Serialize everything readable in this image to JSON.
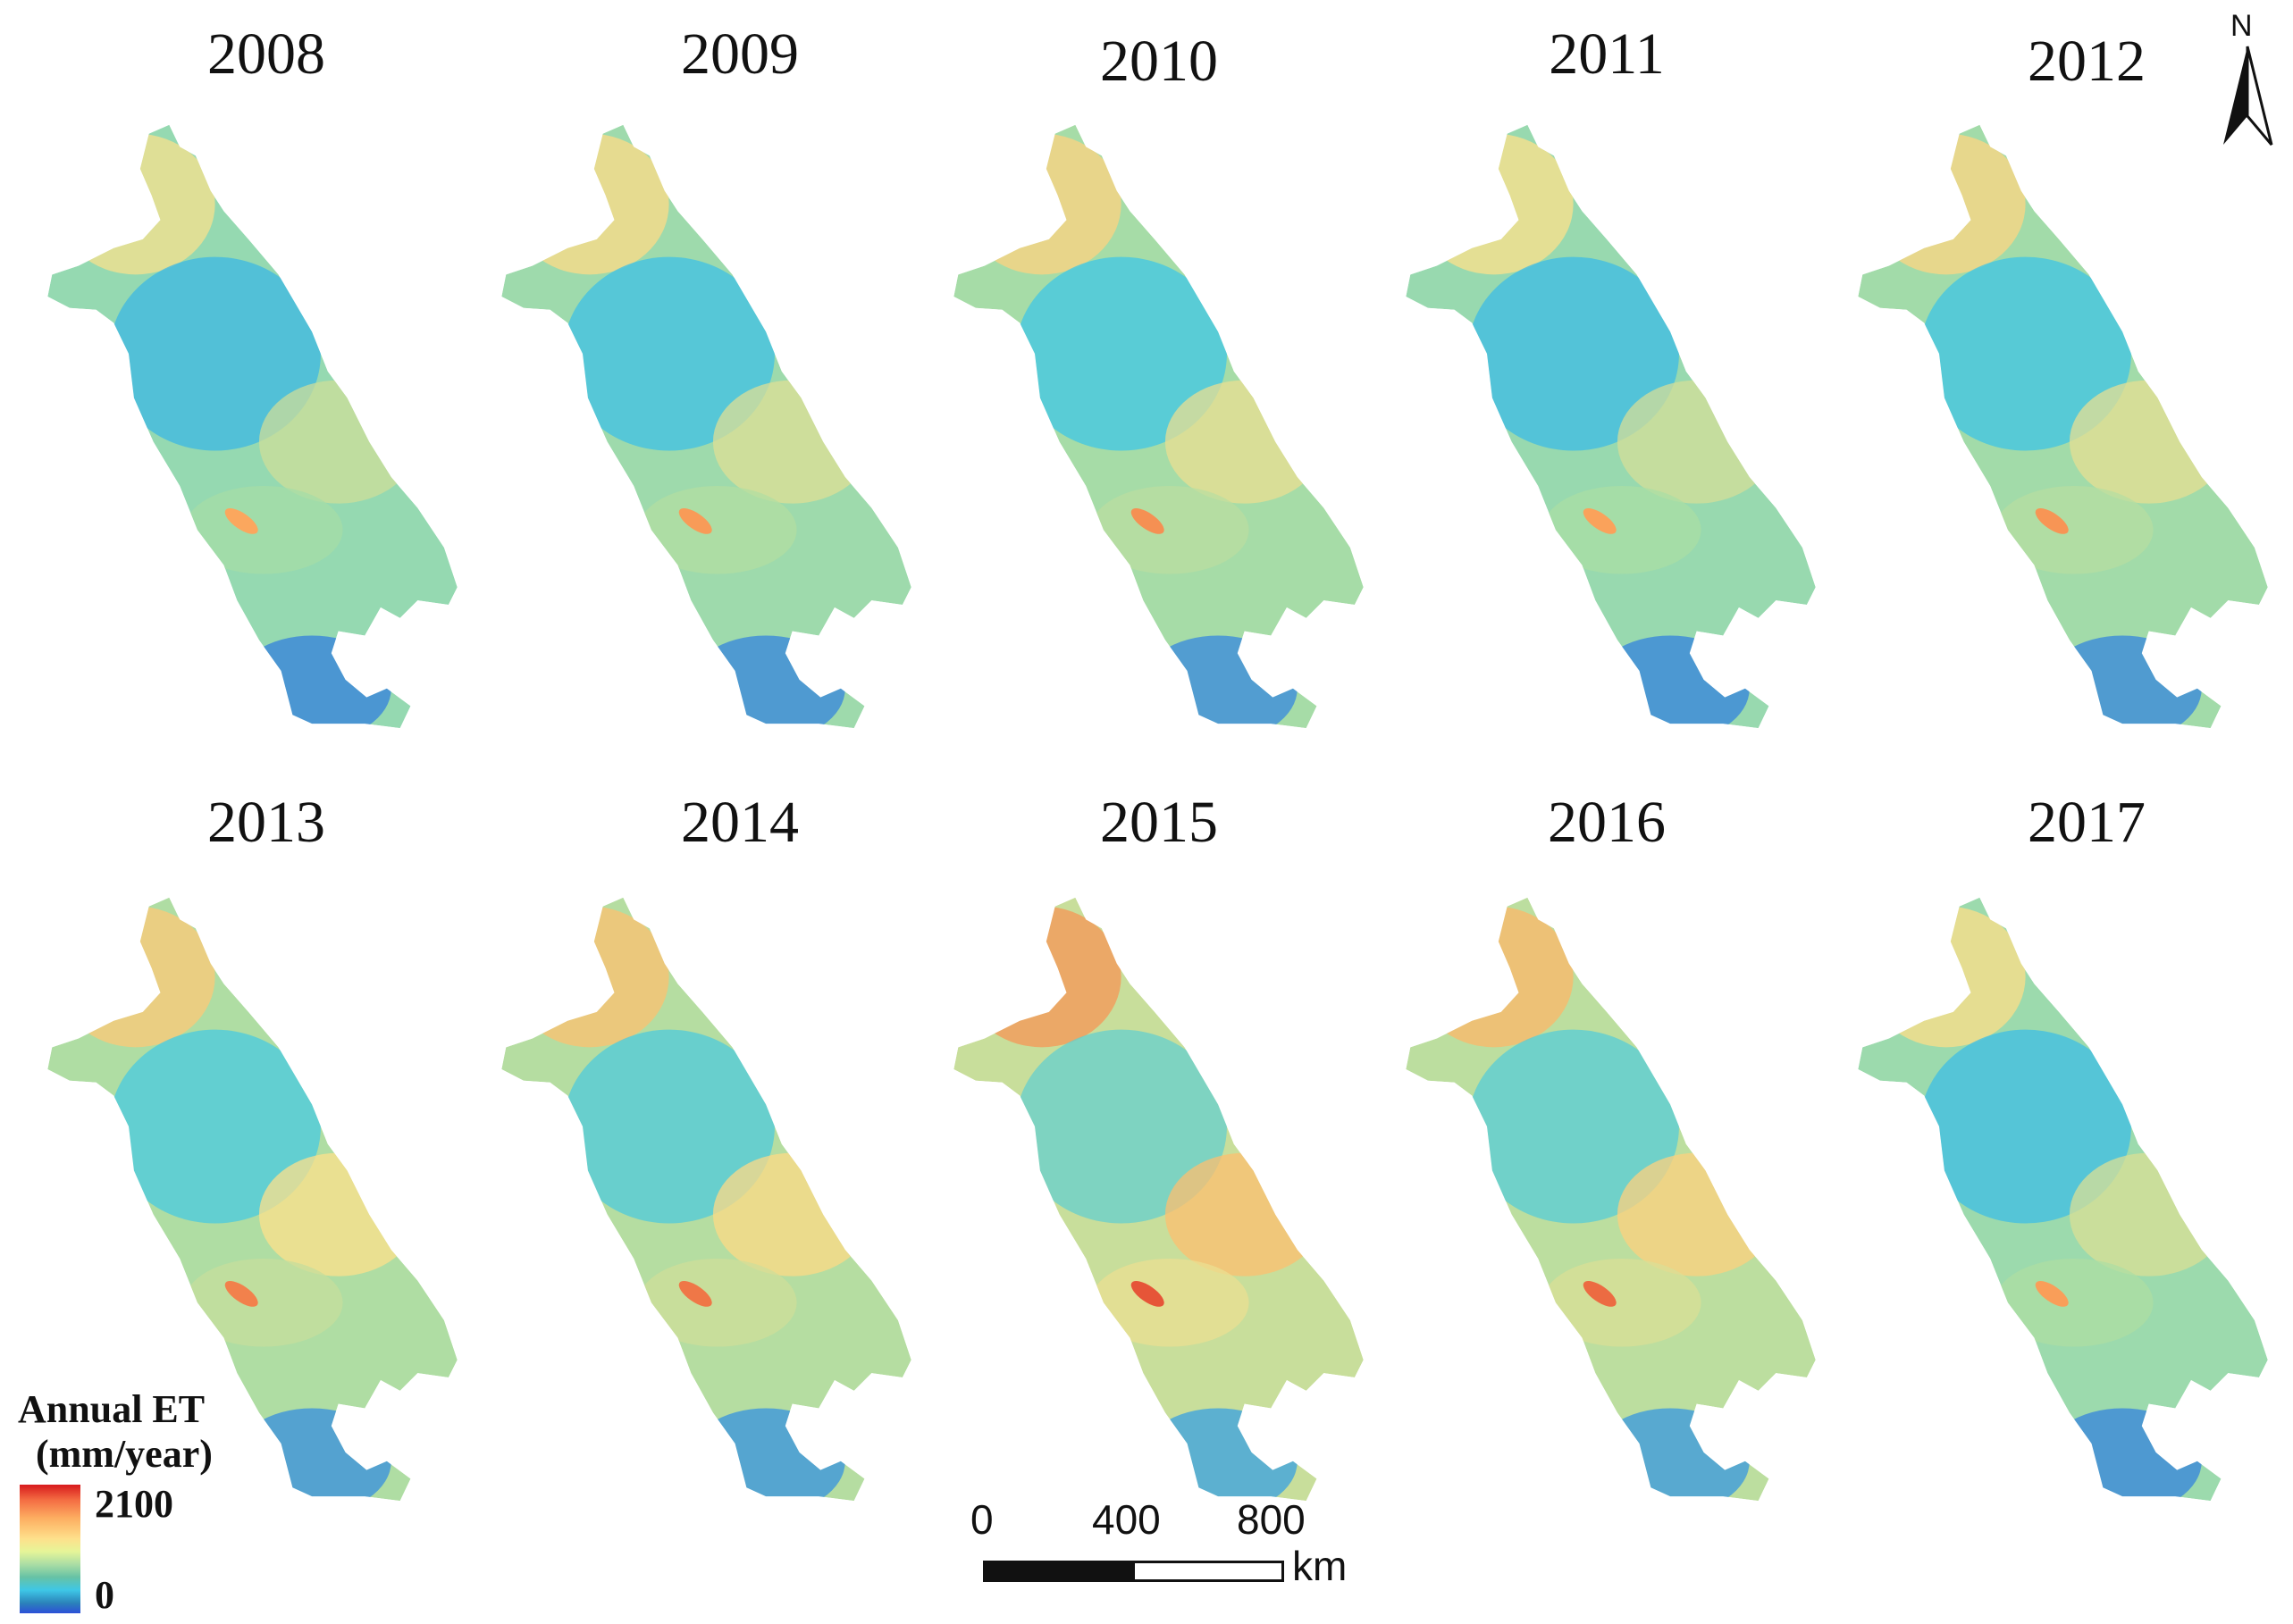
{
  "panels": [
    {
      "year": "2008",
      "intensity": 0.3
    },
    {
      "year": "2009",
      "intensity": 0.38
    },
    {
      "year": "2010",
      "intensity": 0.45
    },
    {
      "year": "2011",
      "intensity": 0.33
    },
    {
      "year": "2012",
      "intensity": 0.42
    },
    {
      "year": "2013",
      "intensity": 0.55
    },
    {
      "year": "2014",
      "intensity": 0.62
    },
    {
      "year": "2015",
      "intensity": 0.85
    },
    {
      "year": "2016",
      "intensity": 0.7
    },
    {
      "year": "2017",
      "intensity": 0.36
    }
  ],
  "legend": {
    "title_line1": "Annual ET",
    "title_line2": "(mm/year)",
    "max_label": "2100",
    "min_label": "0",
    "colors": [
      "#d7191c",
      "#fdae61",
      "#fee08b",
      "#abdda4",
      "#3ec7e6",
      "#2c4fd8"
    ]
  },
  "scale_bar": {
    "labels": [
      "0",
      "400",
      "800"
    ],
    "unit": "km"
  },
  "north_arrow": {
    "label": "N",
    "icon": "north-arrow-icon"
  }
}
